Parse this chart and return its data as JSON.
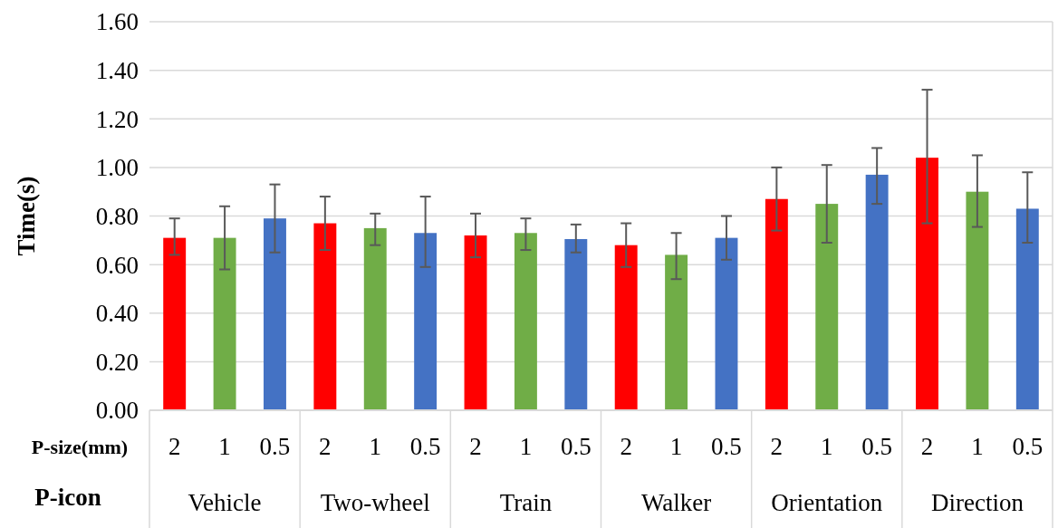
{
  "chart_data": {
    "type": "bar",
    "ylabel": "Time(s)",
    "xlabel": "P-size(mm)",
    "categories": [
      "2",
      "1",
      "0.5",
      "2",
      "1",
      "0.5",
      "2",
      "1",
      "0.5",
      "2",
      "1",
      "0.5",
      "2",
      "1",
      "0.5",
      "2",
      "1",
      "0.5"
    ],
    "values": [
      0.71,
      0.71,
      0.79,
      0.77,
      0.75,
      0.73,
      0.72,
      0.73,
      0.705,
      0.68,
      0.64,
      0.71,
      0.87,
      0.85,
      0.97,
      1.04,
      0.9,
      0.83
    ],
    "colors": [
      "#ff0000",
      "#70ad47",
      "#4472c4",
      "#ff0000",
      "#70ad47",
      "#4472c4",
      "#ff0000",
      "#70ad47",
      "#4472c4",
      "#ff0000",
      "#70ad47",
      "#4472c4",
      "#ff0000",
      "#70ad47",
      "#4472c4",
      "#ff0000",
      "#70ad47",
      "#4472c4"
    ],
    "errors": [
      [
        0.64,
        0.79
      ],
      [
        0.58,
        0.84
      ],
      [
        0.65,
        0.93
      ],
      [
        0.66,
        0.88
      ],
      [
        0.68,
        0.81
      ],
      [
        0.59,
        0.88
      ],
      [
        0.63,
        0.81
      ],
      [
        0.66,
        0.79
      ],
      [
        0.65,
        0.765
      ],
      [
        0.59,
        0.77
      ],
      [
        0.54,
        0.73
      ],
      [
        0.62,
        0.8
      ],
      [
        0.74,
        1.0
      ],
      [
        0.69,
        1.01
      ],
      [
        0.85,
        1.08
      ],
      [
        0.77,
        1.32
      ],
      [
        0.755,
        1.05
      ],
      [
        0.69,
        0.98
      ]
    ],
    "ylim": [
      0,
      1.6
    ],
    "yticks": [
      {
        "value": 0,
        "label": "0.00"
      },
      {
        "value": 0.2,
        "label": "0.20"
      },
      {
        "value": 0.4,
        "label": "0.40"
      },
      {
        "value": 0.6,
        "label": "0.60"
      },
      {
        "value": 0.8,
        "label": "0.80"
      },
      {
        "value": 1.0,
        "label": "1.00"
      },
      {
        "value": 1.2,
        "label": "1.20"
      },
      {
        "value": 1.4,
        "label": "1.40"
      },
      {
        "value": 1.6,
        "label": "1.60"
      }
    ],
    "grid": "y",
    "annotations": [
      "P-icon",
      "Vehicle",
      "Two-wheel",
      "Train",
      "Walker",
      "Orientation",
      "Direction"
    ]
  }
}
